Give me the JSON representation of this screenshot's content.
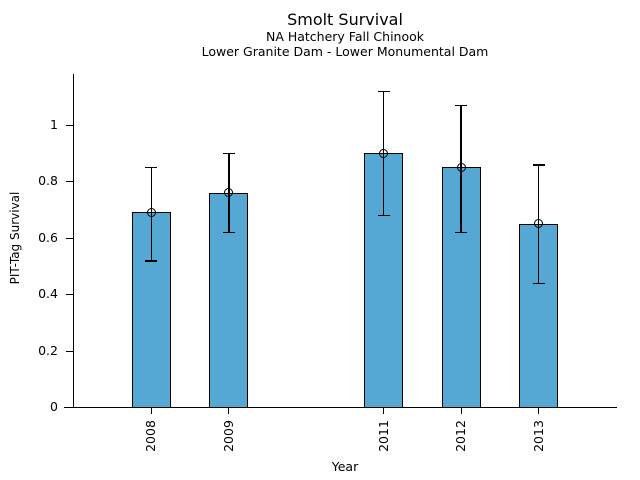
{
  "chart_data": {
    "type": "bar",
    "title": "Smolt Survival",
    "subtitles": [
      "NA Hatchery Fall Chinook",
      "Lower Granite Dam - Lower Monumental Dam"
    ],
    "xlabel": "Year",
    "ylabel": "PIT-Tag Survival",
    "categories": [
      "2008",
      "2009",
      "2011",
      "2012",
      "2013"
    ],
    "x_positions": [
      2008,
      2009,
      2011,
      2012,
      2013
    ],
    "values": [
      0.69,
      0.76,
      0.9,
      0.85,
      0.65
    ],
    "error_low": [
      0.52,
      0.62,
      0.68,
      0.62,
      0.44
    ],
    "error_high": [
      0.85,
      0.9,
      1.12,
      1.07,
      0.86
    ],
    "xlim": [
      2007,
      2014
    ],
    "ylim": [
      0,
      1.18
    ],
    "yticks": [
      0,
      0.2,
      0.4,
      0.6,
      0.8,
      1
    ],
    "ytick_labels": [
      "0",
      "0.2",
      "0.4",
      "0.6",
      "0.8",
      "1"
    ],
    "grid": false,
    "legend": null,
    "marker": "open-circle",
    "bar_color": "#56A8D4",
    "edge_color": "#000000",
    "axis_color": "#000000"
  }
}
